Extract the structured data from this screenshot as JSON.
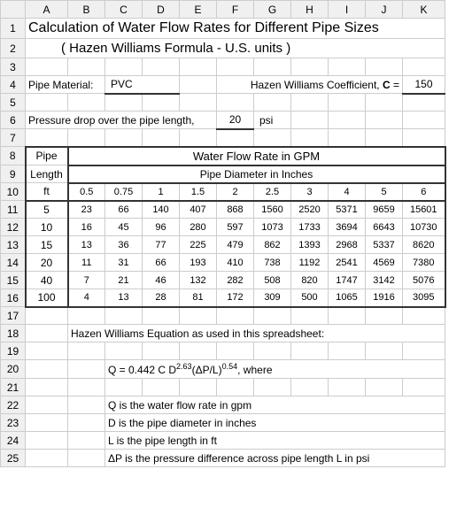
{
  "colWidths": {
    "rowhdr": 28,
    "A": 48,
    "B": 42,
    "C": 42,
    "D": 42,
    "E": 42,
    "F": 42,
    "G": 42,
    "H": 42,
    "I": 42,
    "J": 42,
    "K": 48
  },
  "columnLetters": [
    "A",
    "B",
    "C",
    "D",
    "E",
    "F",
    "G",
    "H",
    "I",
    "J",
    "K"
  ],
  "rowNumbers": [
    "1",
    "2",
    "3",
    "4",
    "5",
    "6",
    "7",
    "8",
    "9",
    "10",
    "11",
    "12",
    "13",
    "14",
    "15",
    "16",
    "17",
    "18",
    "19",
    "20",
    "21",
    "22",
    "23",
    "24",
    "25"
  ],
  "title1": "Calculation of Water Flow Rates for Different Pipe Sizes",
  "title2": "( Hazen Williams Formula - U.S. units )",
  "pipeMaterialLabel": "Pipe Material:",
  "pipeMaterialValue": "PVC",
  "coeffLabel": "Hazen Williams Coefficient, ",
  "coeffSymbol": "C",
  "coeffEquals": " =",
  "coeffValue": "150",
  "pressureLabel": "Pressure drop over the pipe length,",
  "pressureValue": "20",
  "pressureUnit": "psi",
  "pipeHdr": "Pipe",
  "lengthHdr": "Length",
  "ftHdr": "ft",
  "gpmHdr": "Water Flow Rate in GPM",
  "pdiHdr": "Pipe Diameter in Inches",
  "diameters": [
    "0.5",
    "0.75",
    "1",
    "1.5",
    "2",
    "2.5",
    "3",
    "4",
    "5",
    "6"
  ],
  "lengths": [
    "5",
    "10",
    "15",
    "20",
    "40",
    "100"
  ],
  "matrix": [
    [
      "23",
      "66",
      "140",
      "407",
      "868",
      "1560",
      "2520",
      "5371",
      "9659",
      "15601"
    ],
    [
      "16",
      "45",
      "96",
      "280",
      "597",
      "1073",
      "1733",
      "3694",
      "6643",
      "10730"
    ],
    [
      "13",
      "36",
      "77",
      "225",
      "479",
      "862",
      "1393",
      "2968",
      "5337",
      "8620"
    ],
    [
      "11",
      "31",
      "66",
      "193",
      "410",
      "738",
      "1192",
      "2541",
      "4569",
      "7380"
    ],
    [
      "7",
      "21",
      "46",
      "132",
      "282",
      "508",
      "820",
      "1747",
      "3142",
      "5076"
    ],
    [
      "4",
      "13",
      "28",
      "81",
      "172",
      "309",
      "500",
      "1065",
      "1916",
      "3095"
    ]
  ],
  "eqUsedLabel": "Hazen Williams Equation as used in this spreadsheet:",
  "formulaPrefix": "Q = 0.442 C D",
  "formulaExp1": "2.63",
  "formulaMid": "(ΔP/L)",
  "formulaExp2": "0.54",
  "formulaSuffix": ", where",
  "legend_Q": "Q is the water flow rate in gpm",
  "legend_D": "D is the pipe diameter in inches",
  "legend_L": "L is the pipe length in ft",
  "legend_dP": "ΔP is the pressure difference across pipe length L in psi"
}
